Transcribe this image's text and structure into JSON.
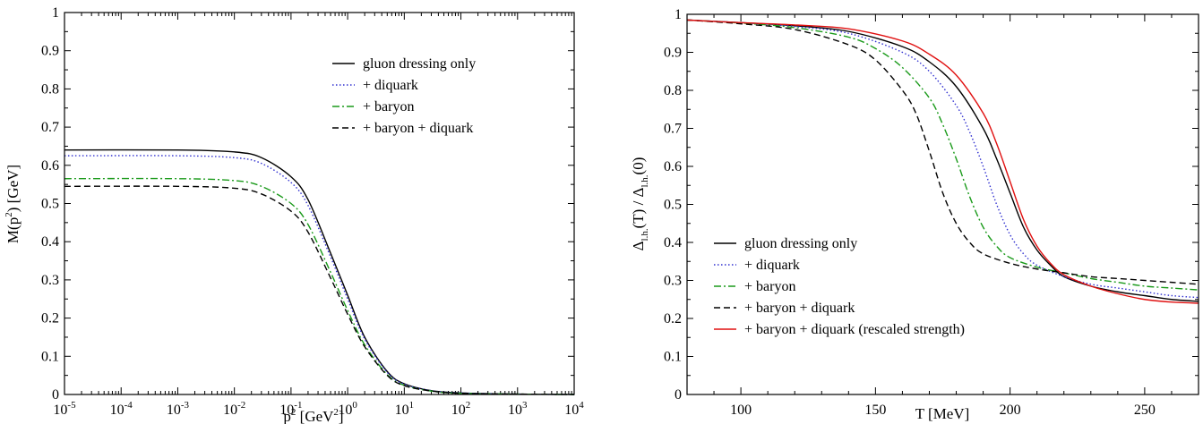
{
  "chart_data": [
    {
      "type": "line",
      "xscale": "log",
      "xlim": [
        1e-05,
        10000
      ],
      "ylim": [
        0,
        1
      ],
      "xlabel": {
        "base": "p",
        "sup": "2",
        "rest": " [GeV",
        "sup2": "2",
        "end": "]"
      },
      "ylabel": {
        "pre": "M(p",
        "sup": "2",
        "post": ") [GeV]"
      },
      "x_ticks": [
        {
          "value": 1e-05,
          "base": "10",
          "exp": "-5"
        },
        {
          "value": 0.0001,
          "base": "10",
          "exp": "-4"
        },
        {
          "value": 0.001,
          "base": "10",
          "exp": "-3"
        },
        {
          "value": 0.01,
          "base": "10",
          "exp": "-2"
        },
        {
          "value": 0.1,
          "base": "10",
          "exp": "-1"
        },
        {
          "value": 1,
          "base": "10",
          "exp": "0"
        },
        {
          "value": 10,
          "base": "10",
          "exp": "1"
        },
        {
          "value": 100,
          "base": "10",
          "exp": "2"
        },
        {
          "value": 1000,
          "base": "10",
          "exp": "3"
        },
        {
          "value": 10000,
          "base": "10",
          "exp": "4"
        }
      ],
      "y_ticks": [
        "0",
        "0.1",
        "0.2",
        "0.3",
        "0.4",
        "0.5",
        "0.6",
        "0.7",
        "0.8",
        "0.9",
        "1"
      ],
      "legend_position": "top-right",
      "series": [
        {
          "name": "gluon dressing only",
          "color": "#000000",
          "dash": "solid",
          "x": [
            1e-05,
            0.001,
            0.01,
            0.03,
            0.1,
            0.2,
            0.5,
            1,
            2,
            5,
            10,
            30,
            100,
            1000,
            10000
          ],
          "y": [
            0.64,
            0.64,
            0.635,
            0.62,
            0.57,
            0.51,
            0.37,
            0.26,
            0.15,
            0.06,
            0.028,
            0.01,
            0.004,
            0.001,
            0.0
          ]
        },
        {
          "name": "+ diquark",
          "color": "#3030d0",
          "dash": "dotted",
          "x": [
            1e-05,
            0.001,
            0.01,
            0.03,
            0.1,
            0.2,
            0.5,
            1,
            2,
            5,
            10,
            30,
            100,
            1000,
            10000
          ],
          "y": [
            0.625,
            0.625,
            0.62,
            0.605,
            0.555,
            0.495,
            0.36,
            0.25,
            0.145,
            0.058,
            0.027,
            0.01,
            0.004,
            0.001,
            0.0
          ]
        },
        {
          "name": "+ baryon",
          "color": "#1a9a1a",
          "dash": "dashdot",
          "x": [
            1e-05,
            0.001,
            0.01,
            0.03,
            0.1,
            0.2,
            0.5,
            1,
            2,
            5,
            10,
            30,
            100,
            1000,
            10000
          ],
          "y": [
            0.565,
            0.565,
            0.56,
            0.545,
            0.5,
            0.445,
            0.32,
            0.22,
            0.13,
            0.052,
            0.024,
            0.009,
            0.003,
            0.001,
            0.0
          ]
        },
        {
          "name": "+ baryon + diquark",
          "color": "#000000",
          "dash": "dashed",
          "x": [
            1e-05,
            0.001,
            0.01,
            0.03,
            0.1,
            0.2,
            0.5,
            1,
            2,
            5,
            10,
            30,
            100,
            1000,
            10000
          ],
          "y": [
            0.545,
            0.545,
            0.54,
            0.525,
            0.48,
            0.425,
            0.305,
            0.21,
            0.125,
            0.05,
            0.023,
            0.009,
            0.003,
            0.001,
            0.0
          ]
        }
      ]
    },
    {
      "type": "line",
      "xscale": "linear",
      "xlim": [
        80,
        270
      ],
      "ylim": [
        0,
        1
      ],
      "xlabel": {
        "text": "T [MeV]"
      },
      "ylabel": {
        "delta": "Δ",
        "sub": "l.h.",
        "mid": "(T) / Δ",
        "sub2": "l.h.",
        "end": "(0)"
      },
      "x_ticks": [
        "100",
        "150",
        "200",
        "250"
      ],
      "x_tick_values": [
        100,
        150,
        200,
        250
      ],
      "y_ticks": [
        "0",
        "0.1",
        "0.2",
        "0.3",
        "0.4",
        "0.5",
        "0.6",
        "0.7",
        "0.8",
        "0.9",
        "1"
      ],
      "legend_position": "bottom-left",
      "series": [
        {
          "name": "gluon dressing only",
          "color": "#000000",
          "dash": "solid",
          "x": [
            80,
            100,
            120,
            140,
            160,
            170,
            180,
            190,
            195,
            200,
            205,
            210,
            215,
            220,
            230,
            240,
            250,
            260,
            270
          ],
          "y": [
            0.985,
            0.978,
            0.97,
            0.955,
            0.915,
            0.875,
            0.81,
            0.7,
            0.62,
            0.53,
            0.44,
            0.38,
            0.34,
            0.31,
            0.285,
            0.27,
            0.26,
            0.25,
            0.245
          ]
        },
        {
          "name": "+ diquark",
          "color": "#3030d0",
          "dash": "dotted",
          "x": [
            80,
            100,
            120,
            140,
            160,
            170,
            180,
            185,
            190,
            195,
            200,
            205,
            210,
            220,
            230,
            240,
            250,
            260,
            270
          ],
          "y": [
            0.985,
            0.978,
            0.968,
            0.95,
            0.9,
            0.85,
            0.76,
            0.69,
            0.6,
            0.5,
            0.42,
            0.37,
            0.34,
            0.31,
            0.29,
            0.28,
            0.27,
            0.26,
            0.255
          ]
        },
        {
          "name": "+ baryon",
          "color": "#1a9a1a",
          "dash": "dashdot",
          "x": [
            80,
            100,
            120,
            140,
            150,
            160,
            170,
            175,
            180,
            185,
            190,
            195,
            200,
            210,
            220,
            230,
            240,
            250,
            260,
            270
          ],
          "y": [
            0.985,
            0.977,
            0.965,
            0.94,
            0.91,
            0.86,
            0.78,
            0.71,
            0.62,
            0.52,
            0.44,
            0.39,
            0.36,
            0.335,
            0.32,
            0.305,
            0.295,
            0.285,
            0.28,
            0.275
          ]
        },
        {
          "name": "+ baryon + diquark",
          "color": "#000000",
          "dash": "dashed",
          "x": [
            80,
            100,
            120,
            140,
            150,
            160,
            165,
            170,
            175,
            180,
            185,
            190,
            200,
            210,
            220,
            230,
            240,
            250,
            260,
            270
          ],
          "y": [
            0.985,
            0.975,
            0.96,
            0.92,
            0.88,
            0.8,
            0.74,
            0.64,
            0.53,
            0.45,
            0.4,
            0.37,
            0.345,
            0.33,
            0.32,
            0.31,
            0.305,
            0.3,
            0.295,
            0.29
          ]
        },
        {
          "name": "+ baryon + diquark (rescaled strength)",
          "color": "#e01010",
          "dash": "solid",
          "x": [
            80,
            100,
            120,
            140,
            160,
            170,
            180,
            190,
            195,
            200,
            205,
            210,
            215,
            220,
            230,
            240,
            250,
            260,
            270
          ],
          "y": [
            0.985,
            0.978,
            0.972,
            0.962,
            0.93,
            0.895,
            0.84,
            0.74,
            0.66,
            0.56,
            0.46,
            0.39,
            0.345,
            0.315,
            0.285,
            0.265,
            0.25,
            0.243,
            0.24
          ]
        }
      ]
    }
  ]
}
